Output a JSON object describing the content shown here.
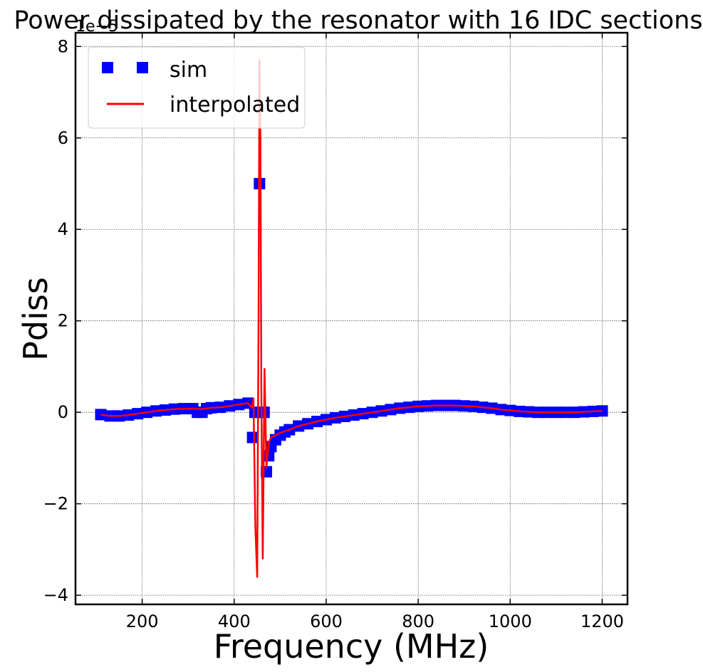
{
  "chart_data": {
    "type": "line",
    "title": "Power dissipated by the resonator with 16 IDC sections",
    "xlabel": "Frequency (MHz)",
    "ylabel": "Pdiss",
    "y_offset_label": "1e−5",
    "y_scale_exponent": -5,
    "xlim": [
      55,
      1255
    ],
    "ylim": [
      -4.2,
      8.3
    ],
    "x_ticks": [
      200,
      400,
      600,
      800,
      1000,
      1200
    ],
    "x_tick_labels": [
      "200",
      "400",
      "600",
      "800",
      "1000",
      "1200"
    ],
    "y_ticks": [
      -4,
      -2,
      0,
      2,
      4,
      6,
      8
    ],
    "y_tick_labels": [
      "−4",
      "−2",
      "0",
      "2",
      "4",
      "6",
      "8"
    ],
    "grid": true,
    "legend_position": "top-left",
    "legend": [
      {
        "label": "sim",
        "marker": "square",
        "color": "#0000ff"
      },
      {
        "label": "interpolated",
        "marker": "line",
        "color": "#ff0000"
      }
    ],
    "colors": {
      "sim": "#0000ff",
      "interpolated": "#ff0000"
    },
    "series": [
      {
        "name": "sim",
        "style": "markers",
        "x": [
          110,
          130,
          150,
          170,
          190,
          210,
          230,
          250,
          270,
          290,
          310,
          320,
          330,
          340,
          350,
          370,
          390,
          410,
          430,
          440,
          445,
          455,
          460,
          465,
          470,
          475,
          480,
          490,
          500,
          510,
          520,
          540,
          560,
          580,
          600,
          620,
          640,
          660,
          680,
          700,
          720,
          740,
          760,
          780,
          800,
          820,
          840,
          860,
          880,
          900,
          920,
          940,
          960,
          980,
          1000,
          1020,
          1040,
          1060,
          1080,
          1100,
          1120,
          1140,
          1160,
          1180,
          1200
        ],
        "y": [
          -0.05,
          -0.08,
          -0.08,
          -0.06,
          -0.03,
          0.0,
          0.03,
          0.05,
          0.07,
          0.08,
          0.08,
          0.0,
          0.0,
          0.08,
          0.1,
          0.11,
          0.14,
          0.17,
          0.2,
          -0.55,
          0.0,
          5.0,
          0.0,
          0.0,
          -1.3,
          -0.95,
          -0.75,
          -0.6,
          -0.5,
          -0.43,
          -0.38,
          -0.3,
          -0.25,
          -0.2,
          -0.16,
          -0.12,
          -0.09,
          -0.06,
          -0.03,
          0.0,
          0.03,
          0.06,
          0.09,
          0.11,
          0.13,
          0.14,
          0.15,
          0.15,
          0.15,
          0.14,
          0.13,
          0.11,
          0.09,
          0.06,
          0.04,
          0.02,
          0.01,
          0.0,
          0.0,
          0.0,
          0.0,
          0.0,
          0.01,
          0.02,
          0.03
        ]
      },
      {
        "name": "interpolated",
        "style": "line",
        "x": [
          110,
          130,
          150,
          170,
          190,
          210,
          230,
          250,
          270,
          290,
          310,
          330,
          350,
          370,
          390,
          410,
          430,
          438,
          442,
          446,
          450,
          453,
          455,
          457,
          459,
          462,
          466,
          470,
          473,
          476,
          480,
          490,
          500,
          520,
          540,
          560,
          580,
          600,
          620,
          640,
          660,
          680,
          700,
          720,
          740,
          760,
          780,
          800,
          820,
          840,
          860,
          880,
          900,
          920,
          940,
          960,
          980,
          1000,
          1020,
          1040,
          1060,
          1080,
          1100,
          1120,
          1140,
          1160,
          1180,
          1200
        ],
        "y": [
          -0.05,
          -0.08,
          -0.08,
          -0.06,
          -0.03,
          0.0,
          0.03,
          0.05,
          0.07,
          0.08,
          0.08,
          0.07,
          0.1,
          0.11,
          0.14,
          0.17,
          0.2,
          0.1,
          0.3,
          -2.5,
          -3.6,
          2.0,
          7.7,
          6.0,
          0.5,
          -3.2,
          0.95,
          -1.2,
          -0.9,
          -0.65,
          -0.55,
          -0.5,
          -0.45,
          -0.38,
          -0.3,
          -0.25,
          -0.2,
          -0.16,
          -0.12,
          -0.09,
          -0.06,
          -0.03,
          0.0,
          0.03,
          0.06,
          0.09,
          0.11,
          0.13,
          0.14,
          0.15,
          0.15,
          0.15,
          0.14,
          0.13,
          0.11,
          0.09,
          0.06,
          0.04,
          0.02,
          0.01,
          0.0,
          0.0,
          0.0,
          0.0,
          0.0,
          0.01,
          0.02,
          0.03
        ]
      }
    ]
  }
}
